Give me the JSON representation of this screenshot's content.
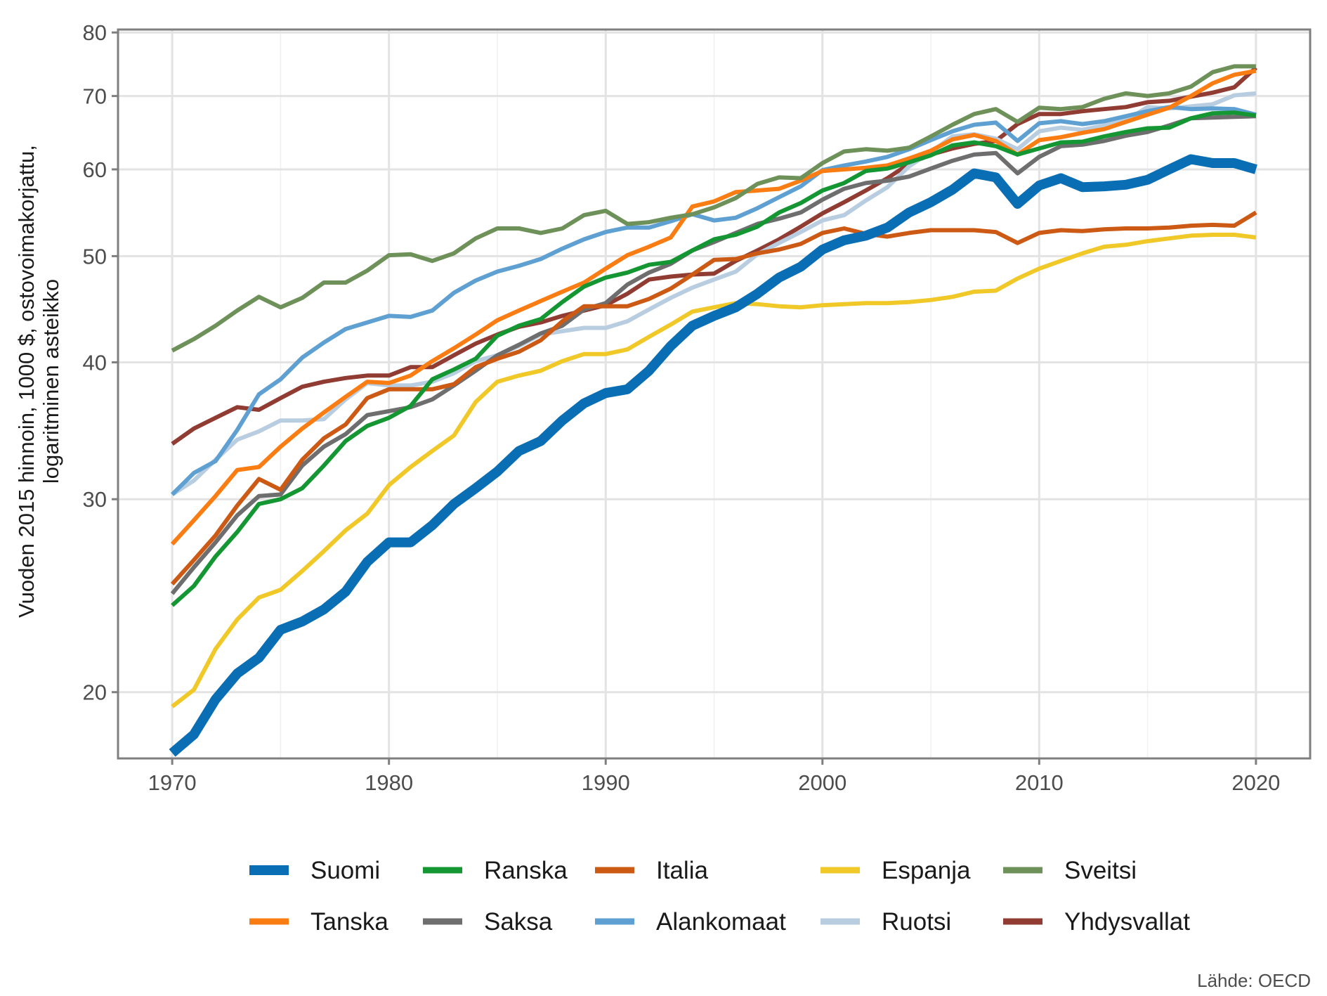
{
  "chart_data": {
    "type": "line",
    "ylabel_lines": [
      "Vuoden 2015 hinnoin, 1000 $, ostovoimakorjattu,",
      "logaritminen asteikko"
    ],
    "xlabel": "",
    "source": "Lähde: OECD",
    "y_scale": "log",
    "xlim": [
      1967.5,
      2022.5
    ],
    "ylim": [
      17.4,
      80.5
    ],
    "x_ticks": [
      1970,
      1980,
      1990,
      2000,
      2010,
      2020
    ],
    "y_ticks": [
      20,
      30,
      40,
      50,
      60,
      70,
      80
    ],
    "grid": true,
    "legend_position": "bottom",
    "x": [
      1970,
      1971,
      1972,
      1973,
      1974,
      1975,
      1976,
      1977,
      1978,
      1979,
      1980,
      1981,
      1982,
      1983,
      1984,
      1985,
      1986,
      1987,
      1988,
      1989,
      1990,
      1991,
      1992,
      1993,
      1994,
      1995,
      1996,
      1997,
      1998,
      1999,
      2000,
      2001,
      2002,
      2003,
      2004,
      2005,
      2006,
      2007,
      2008,
      2009,
      2010,
      2011,
      2012,
      2013,
      2014,
      2015,
      2016,
      2017,
      2018,
      2019,
      2020
    ],
    "series": [
      {
        "name": "Suomi",
        "color": "#0a6eb4",
        "width": 14,
        "values": [
          17.6,
          18.3,
          19.7,
          20.8,
          21.5,
          22.8,
          23.2,
          23.8,
          24.7,
          26.3,
          27.4,
          27.4,
          28.4,
          29.7,
          30.7,
          31.8,
          33.2,
          33.9,
          35.4,
          36.7,
          37.5,
          37.8,
          39.3,
          41.4,
          43.2,
          44.1,
          44.9,
          46.2,
          47.8,
          48.9,
          50.7,
          51.7,
          52.2,
          53.1,
          54.8,
          56.0,
          57.5,
          59.5,
          59.0,
          55.8,
          58.0,
          58.9,
          57.8,
          57.9,
          58.1,
          58.7,
          60.0,
          61.3,
          60.8,
          60.8,
          60.0
        ]
      },
      {
        "name": "Ranska",
        "color": "#149632",
        "width": 6,
        "values": [
          24.0,
          25.0,
          26.6,
          28.0,
          29.7,
          30.0,
          30.7,
          32.2,
          33.9,
          35.0,
          35.6,
          36.5,
          38.6,
          39.4,
          40.3,
          42.3,
          43.2,
          43.8,
          45.4,
          46.9,
          47.8,
          48.3,
          49.1,
          49.4,
          50.6,
          51.8,
          52.3,
          53.2,
          54.8,
          55.9,
          57.4,
          58.3,
          59.8,
          60.1,
          60.9,
          61.8,
          63.1,
          63.5,
          63.0,
          61.9,
          62.7,
          63.5,
          63.6,
          64.3,
          64.9,
          65.4,
          65.5,
          66.8,
          67.5,
          67.6,
          67.2
        ]
      },
      {
        "name": "Italia",
        "color": "#cd5a14",
        "width": 6,
        "values": [
          25.1,
          26.4,
          27.8,
          29.6,
          31.3,
          30.6,
          32.6,
          34.1,
          35.1,
          37.1,
          37.8,
          37.8,
          37.8,
          38.2,
          39.6,
          40.3,
          40.9,
          41.9,
          43.6,
          45.0,
          45.0,
          45.0,
          45.7,
          46.7,
          48.1,
          49.6,
          49.7,
          50.3,
          50.7,
          51.3,
          52.5,
          53.0,
          52.4,
          52.1,
          52.5,
          52.8,
          52.8,
          52.8,
          52.6,
          51.4,
          52.5,
          52.8,
          52.7,
          52.9,
          53.0,
          53.0,
          53.1,
          53.3,
          53.4,
          53.3,
          54.8
        ]
      },
      {
        "name": "Espanja",
        "color": "#f0c828",
        "width": 6,
        "values": [
          19.4,
          20.1,
          21.9,
          23.3,
          24.4,
          24.8,
          25.8,
          26.9,
          28.1,
          29.1,
          30.9,
          32.1,
          33.2,
          34.3,
          36.8,
          38.4,
          38.9,
          39.3,
          40.1,
          40.7,
          40.7,
          41.1,
          42.2,
          43.3,
          44.5,
          44.9,
          45.3,
          45.2,
          45.0,
          44.9,
          45.1,
          45.2,
          45.3,
          45.3,
          45.4,
          45.6,
          45.9,
          46.4,
          46.5,
          47.7,
          48.7,
          49.5,
          50.3,
          51.0,
          51.2,
          51.6,
          51.9,
          52.2,
          52.3,
          52.3,
          52.0
        ]
      },
      {
        "name": "Sveitsi",
        "color": "#6e915a",
        "width": 6,
        "values": [
          41.0,
          42.0,
          43.2,
          44.6,
          45.9,
          44.9,
          45.8,
          47.3,
          47.3,
          48.5,
          50.1,
          50.2,
          49.5,
          50.3,
          51.9,
          53.0,
          53.0,
          52.5,
          53.0,
          54.5,
          55.0,
          53.5,
          53.7,
          54.2,
          54.6,
          55.4,
          56.5,
          58.2,
          59.0,
          58.9,
          60.8,
          62.3,
          62.6,
          62.4,
          62.8,
          64.3,
          65.9,
          67.4,
          68.1,
          66.3,
          68.3,
          68.1,
          68.4,
          69.6,
          70.4,
          70.0,
          70.4,
          71.4,
          73.6,
          74.5,
          74.5
        ]
      },
      {
        "name": "Tanska",
        "color": "#fa7d14",
        "width": 6,
        "values": [
          27.3,
          28.7,
          30.2,
          31.9,
          32.1,
          33.5,
          34.8,
          36.0,
          37.2,
          38.4,
          38.3,
          38.9,
          40.1,
          41.2,
          42.4,
          43.7,
          44.6,
          45.5,
          46.4,
          47.3,
          48.7,
          50.1,
          51.0,
          52.0,
          55.5,
          56.1,
          57.2,
          57.4,
          57.6,
          58.6,
          59.8,
          60.0,
          60.2,
          60.5,
          61.4,
          62.4,
          63.9,
          64.5,
          63.7,
          61.9,
          63.8,
          64.2,
          64.8,
          65.3,
          66.3,
          67.3,
          68.3,
          70.0,
          71.9,
          73.2,
          73.8
        ]
      },
      {
        "name": "Saksa",
        "color": "#6e6e6e",
        "width": 6,
        "values": [
          24.6,
          26.0,
          27.4,
          29.0,
          30.2,
          30.3,
          32.2,
          33.5,
          34.4,
          35.8,
          36.1,
          36.4,
          37.0,
          38.1,
          39.3,
          40.6,
          41.5,
          42.5,
          43.2,
          44.7,
          45.3,
          47.1,
          48.3,
          49.2,
          50.6,
          51.5,
          52.5,
          53.5,
          54.1,
          54.8,
          56.3,
          57.6,
          58.3,
          58.6,
          59.1,
          60.1,
          61.1,
          61.9,
          62.1,
          59.5,
          61.6,
          63.0,
          63.2,
          63.7,
          64.4,
          64.9,
          65.8,
          66.8,
          66.9,
          67.0,
          67.1
        ]
      },
      {
        "name": "Alankomaat",
        "color": "#5fa0d2",
        "width": 6,
        "values": [
          30.3,
          31.7,
          32.5,
          34.7,
          37.4,
          38.6,
          40.4,
          41.7,
          42.9,
          43.5,
          44.1,
          44.0,
          44.6,
          46.3,
          47.5,
          48.4,
          49.0,
          49.7,
          50.8,
          51.8,
          52.6,
          53.1,
          53.1,
          53.8,
          54.6,
          53.9,
          54.2,
          55.3,
          56.6,
          57.9,
          59.9,
          60.5,
          61.0,
          61.6,
          62.6,
          63.8,
          65.0,
          65.9,
          66.2,
          63.7,
          66.1,
          66.4,
          66.0,
          66.4,
          67.1,
          67.8,
          68.4,
          68.1,
          68.2,
          68.1,
          67.3
        ]
      },
      {
        "name": "Ruotsi",
        "color": "#b9cde1",
        "width": 6,
        "values": [
          30.3,
          31.2,
          32.6,
          34.0,
          34.6,
          35.4,
          35.4,
          35.5,
          37.0,
          38.3,
          38.1,
          38.1,
          38.4,
          39.1,
          40.1,
          40.6,
          41.4,
          42.4,
          42.7,
          43.0,
          43.0,
          43.6,
          44.7,
          45.8,
          46.8,
          47.6,
          48.4,
          50.2,
          51.4,
          52.6,
          53.9,
          54.5,
          56.2,
          57.8,
          60.4,
          62.2,
          64.3,
          64.6,
          64.0,
          62.6,
          65.0,
          65.5,
          65.2,
          65.8,
          66.5,
          68.4,
          68.2,
          68.5,
          68.8,
          70.1,
          70.4
        ]
      },
      {
        "name": "Yhdysvallat",
        "color": "#913c32",
        "width": 6,
        "values": [
          33.7,
          34.8,
          35.6,
          36.4,
          36.2,
          37.1,
          38.0,
          38.4,
          38.7,
          38.9,
          38.9,
          39.6,
          39.6,
          40.6,
          41.6,
          42.4,
          43.1,
          43.5,
          44.1,
          44.6,
          45.1,
          46.2,
          47.6,
          47.9,
          48.1,
          48.2,
          49.5,
          50.6,
          51.8,
          53.2,
          54.7,
          56.0,
          57.4,
          58.9,
          60.7,
          61.9,
          62.7,
          63.3,
          63.7,
          66.0,
          67.4,
          67.4,
          67.8,
          68.1,
          68.4,
          69.1,
          69.3,
          69.9,
          70.5,
          71.3,
          74.3
        ]
      }
    ],
    "legend_order": [
      [
        "Suomi",
        "Ranska",
        "Italia",
        "Espanja",
        "Sveitsi"
      ],
      [
        "Tanska",
        "Saksa",
        "Alankomaat",
        "Ruotsi",
        "Yhdysvallat"
      ]
    ]
  }
}
